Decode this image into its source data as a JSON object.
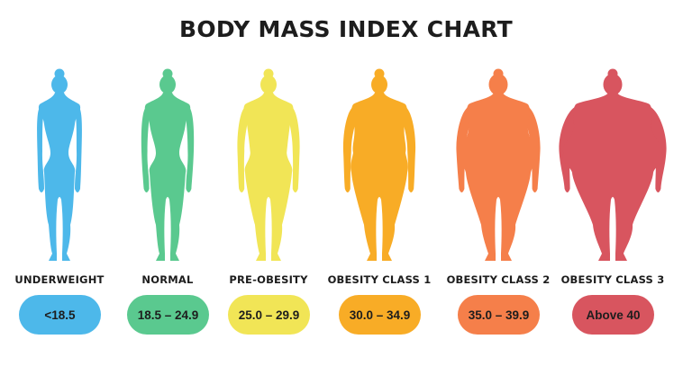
{
  "title": "BODY MASS INDEX CHART",
  "categories": [
    {
      "label": "UNDERWEIGHT",
      "range": "<18.5",
      "color": "#4db8ea",
      "build": "thin"
    },
    {
      "label": "NORMAL",
      "range": "18.5 – 24.9",
      "color": "#5ac98f",
      "build": "normal"
    },
    {
      "label": "PRE-OBESITY",
      "range": "25.0 – 29.9",
      "color": "#f1e556",
      "build": "over"
    },
    {
      "label": "OBESITY CLASS 1",
      "range": "30.0 – 34.9",
      "color": "#f8ac26",
      "build": "obese1"
    },
    {
      "label": "OBESITY CLASS 2",
      "range": "35.0 – 39.9",
      "color": "#f57f4a",
      "build": "obese2"
    },
    {
      "label": "OBESITY CLASS 3",
      "range": "Above 40",
      "color": "#d8555f",
      "build": "obese3"
    }
  ]
}
